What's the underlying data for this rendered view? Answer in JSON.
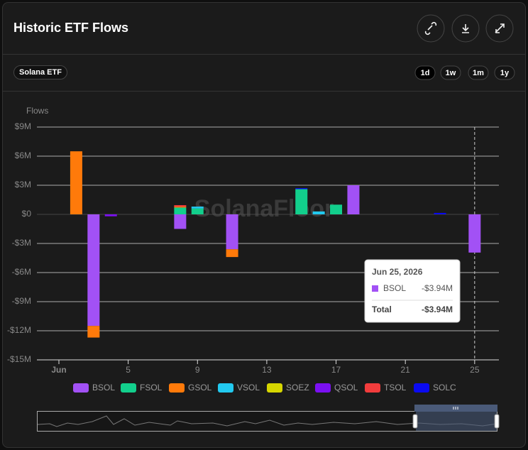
{
  "header": {
    "title": "Historic ETF Flows",
    "tag": "Solana ETF",
    "ranges": [
      "1d",
      "1w",
      "1m",
      "1y"
    ]
  },
  "chart_data": {
    "type": "bar",
    "stacked": true,
    "watermark": "SolanaFloor",
    "ylabel": "Flows",
    "x": [
      2,
      3,
      4,
      8,
      9,
      11,
      15,
      16,
      17,
      18,
      23,
      25
    ],
    "xlim": [
      -0.27,
      26.4
    ],
    "xticks": [
      {
        "value": 1,
        "label": "Jun"
      },
      5,
      9,
      13,
      17,
      21,
      25
    ],
    "ylim": [
      -15,
      9
    ],
    "yticks": [
      {
        "value": 9,
        "label": "$9M"
      },
      {
        "value": 6,
        "label": "$6M"
      },
      {
        "value": 3,
        "label": "$3M"
      },
      {
        "value": 0,
        "label": "$0"
      },
      {
        "value": -3,
        "label": "-$3M"
      },
      {
        "value": -6,
        "label": "-$6M"
      },
      {
        "value": -9,
        "label": "-$9M"
      },
      {
        "value": -12,
        "label": "-$12M"
      },
      {
        "value": -15,
        "label": "-$15M"
      }
    ],
    "grid": true,
    "series": [
      {
        "name": "BSOL",
        "color": "#a251f5",
        "values": [
          0,
          -11.5,
          0,
          -1.5,
          0,
          -3.6,
          0,
          0,
          0,
          3.0,
          0,
          -3.94
        ]
      },
      {
        "name": "FSOL",
        "color": "#12cf8c",
        "values": [
          0,
          0,
          0,
          0.7,
          0.6,
          0,
          2.6,
          0,
          1.0,
          0,
          0,
          0
        ]
      },
      {
        "name": "GSOL",
        "color": "#ff7a0a",
        "values": [
          6.5,
          -1.2,
          0,
          0.1,
          0,
          -0.8,
          0,
          0,
          0,
          0,
          0,
          0
        ]
      },
      {
        "name": "VSOL",
        "color": "#22c9ef",
        "values": [
          0,
          0,
          0,
          0,
          0.2,
          0,
          0,
          0.3,
          0,
          0,
          0,
          0
        ]
      },
      {
        "name": "SOEZ",
        "color": "#d6d600",
        "values": [
          0,
          0,
          0,
          0,
          0,
          0,
          0,
          0,
          0,
          0,
          0,
          0
        ]
      },
      {
        "name": "QSOL",
        "color": "#7b10f2",
        "values": [
          0,
          0,
          -0.2,
          0,
          0,
          0,
          0,
          0,
          0,
          0,
          0,
          0
        ]
      },
      {
        "name": "TSOL",
        "color": "#f23c3c",
        "values": [
          0,
          0,
          0,
          0.15,
          0,
          0,
          0,
          0,
          0,
          0,
          0,
          0
        ]
      },
      {
        "name": "SOLC",
        "color": "#0a0af0",
        "values": [
          0,
          0,
          0,
          0,
          0,
          0,
          0.1,
          0,
          0,
          0,
          0.15,
          0
        ]
      }
    ],
    "crosshair": 25,
    "tooltip": {
      "title": "Jun 25, 2026",
      "value_label": "-$3.94M",
      "total_label": "Total",
      "total_value": "-$3.94M"
    }
  }
}
